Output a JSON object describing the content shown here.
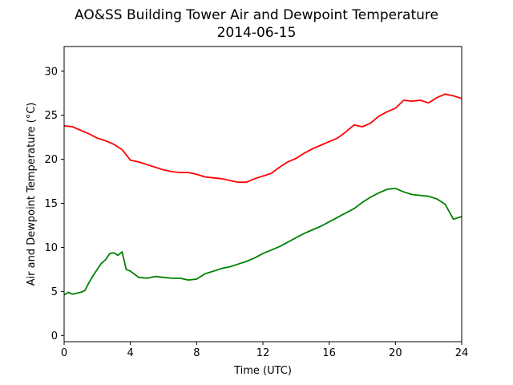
{
  "chart_data": {
    "type": "line",
    "title": "AO&SS Building Tower Air and Dewpoint Temperature",
    "subtitle": "2014-06-15",
    "xlabel": "Time (UTC)",
    "ylabel": "Air and Dewpoint Temperature (°C)",
    "xlim": [
      0,
      24
    ],
    "ylim": [
      -0.7,
      32.8
    ],
    "xticks": [
      0,
      4,
      8,
      12,
      16,
      20,
      24
    ],
    "yticks": [
      0,
      5,
      10,
      15,
      20,
      25,
      30
    ],
    "grid": false,
    "series": [
      {
        "color": "#ff0000",
        "x": [
          0,
          0.5,
          1,
          1.5,
          2,
          2.5,
          3,
          3.5,
          4,
          4.5,
          5,
          5.5,
          6,
          6.5,
          7,
          7.5,
          8,
          8.5,
          9,
          9.5,
          10,
          10.5,
          11,
          11.5,
          12,
          12.5,
          13,
          13.5,
          14,
          14.5,
          15,
          15.5,
          16,
          16.5,
          17,
          17.5,
          18,
          18.5,
          19,
          19.5,
          20,
          20.5,
          21,
          21.5,
          22,
          22.5,
          23,
          23.5,
          24
        ],
        "y": [
          23.8,
          23.7,
          23.3,
          22.9,
          22.4,
          22.1,
          21.7,
          21.1,
          19.9,
          19.7,
          19.4,
          19.1,
          18.8,
          18.6,
          18.5,
          18.5,
          18.3,
          18.0,
          17.9,
          17.8,
          17.6,
          17.4,
          17.4,
          17.8,
          18.1,
          18.4,
          19.1,
          19.7,
          20.1,
          20.7,
          21.2,
          21.6,
          22.0,
          22.4,
          23.1,
          23.9,
          23.7,
          24.1,
          24.9,
          25.4,
          25.8,
          26.7,
          26.6,
          26.7,
          26.4,
          27.0,
          27.4,
          27.2,
          26.9
        ]
      },
      {
        "color": "#008000",
        "x": [
          0,
          0.25,
          0.5,
          0.75,
          1,
          1.25,
          1.5,
          1.75,
          2,
          2.25,
          2.5,
          2.75,
          3,
          3.25,
          3.5,
          3.75,
          4,
          4.5,
          5,
          5.5,
          6,
          6.5,
          7,
          7.5,
          8,
          8.5,
          9,
          9.5,
          10,
          10.5,
          11,
          11.5,
          12,
          12.5,
          13,
          13.5,
          14,
          14.5,
          15,
          15.5,
          16,
          16.5,
          17,
          17.5,
          18,
          18.5,
          19,
          19.5,
          20,
          20.5,
          21,
          21.5,
          22,
          22.5,
          23,
          23.5,
          24
        ],
        "y": [
          4.6,
          4.9,
          4.7,
          4.8,
          4.9,
          5.1,
          6.0,
          6.8,
          7.5,
          8.2,
          8.6,
          9.3,
          9.4,
          9.1,
          9.5,
          7.5,
          7.3,
          6.6,
          6.5,
          6.7,
          6.6,
          6.5,
          6.5,
          6.3,
          6.4,
          7.0,
          7.3,
          7.6,
          7.8,
          8.1,
          8.4,
          8.8,
          9.3,
          9.7,
          10.1,
          10.6,
          11.1,
          11.6,
          12.0,
          12.4,
          12.9,
          13.4,
          13.9,
          14.4,
          15.1,
          15.7,
          16.2,
          16.6,
          16.7,
          16.3,
          16.0,
          15.9,
          15.8,
          15.5,
          14.9,
          13.2,
          13.5
        ]
      }
    ]
  }
}
